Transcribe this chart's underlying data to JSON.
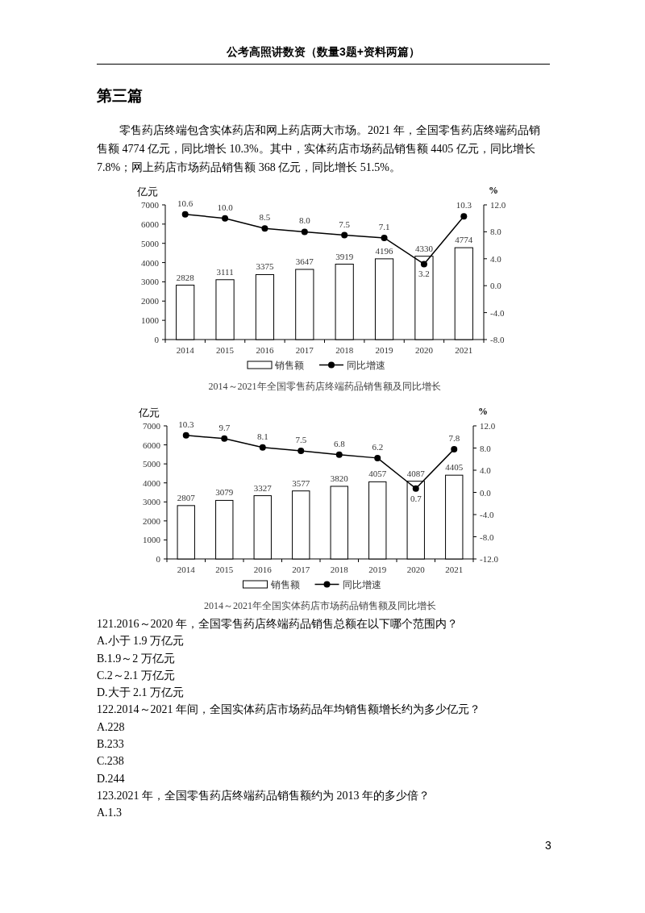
{
  "chart_data": [
    {
      "type": "bar",
      "title": "2014～2021年全国零售药店终端药品销售额及同比增长",
      "ylabel": "亿元",
      "y2label": "%",
      "annotations": [
        "公考高照讲数资（数量3题+资料两篇）",
        "第三篇",
        "零售药店终端包含实体药店和网上药店两大市场。2021 年，全国零售药店终端药品销售额 4774 亿元，同比增长 10.3%。其中，实体药店市场药品销售额 4405 亿元，同比增长 7.8%；网上药店市场药品销售额 368 亿元，同比增长 51.5%。"
      ],
      "categories": [
        "2014",
        "2015",
        "2016",
        "2017",
        "2018",
        "2019",
        "2020",
        "2021"
      ],
      "series": [
        {
          "name": "销售额",
          "color": "#ffffff",
          "values": [
            2828,
            3111,
            3375,
            3647,
            3919,
            4196,
            4330,
            4774
          ]
        },
        {
          "name": "同比增速",
          "type": "line",
          "axis": "y2",
          "color": "#000000",
          "marker": "circle",
          "values": [
            10.6,
            10.0,
            8.5,
            8.0,
            7.5,
            7.1,
            3.2,
            10.3
          ],
          "value_labels": [
            "10.6",
            "10.0",
            "8.5",
            "8.0",
            "7.5",
            "7.1",
            "3.2",
            "10.3"
          ]
        }
      ],
      "ylim": [
        0,
        7000
      ],
      "yticks": [
        0,
        1000,
        2000,
        3000,
        4000,
        5000,
        6000,
        7000
      ],
      "y2lim": [
        -8,
        12
      ],
      "y2ticks": [
        {
          "value": -8,
          "label": "-8.0"
        },
        {
          "value": -4,
          "label": "-4.0"
        },
        {
          "value": 0,
          "label": "0.0"
        },
        {
          "value": 4,
          "label": "4.0"
        },
        {
          "value": 8,
          "label": "8.0"
        },
        {
          "value": 12,
          "label": "12.0"
        }
      ],
      "data_labels": true,
      "legend": "bottom",
      "grid": false
    },
    {
      "type": "bar",
      "title": "2014～2021年全国实体药店市场药品销售额及同比增长",
      "ylabel": "亿元",
      "y2label": "%",
      "annotations": [
        "121.2016～2020 年，全国零售药店终端药品销售总额在以下哪个范围内？",
        "A.小于 1.9 万亿元",
        "B.1.9～2 万亿元",
        "C.2～2.1 万亿元",
        "D.大于 2.1 万亿元",
        "122.2014～2021 年间，全国实体药店市场药品年均销售额增长约为多少亿元？",
        "A.228",
        "B.233",
        "C.238",
        "D.244",
        "123.2021 年，全国零售药店终端药品销售额约为 2013 年的多少倍？",
        "A.1.3",
        "3"
      ],
      "categories": [
        "2014",
        "2015",
        "2016",
        "2017",
        "2018",
        "2019",
        "2020",
        "2021"
      ],
      "series": [
        {
          "name": "销售额",
          "color": "#ffffff",
          "values": [
            2807,
            3079,
            3327,
            3577,
            3820,
            4057,
            4087,
            4405
          ]
        },
        {
          "name": "同比增速",
          "type": "line",
          "axis": "y2",
          "color": "#000000",
          "marker": "circle",
          "values": [
            10.3,
            9.7,
            8.1,
            7.5,
            6.8,
            6.2,
            0.7,
            7.8
          ],
          "value_labels": [
            "10.3",
            "9.7",
            "8.1",
            "7.5",
            "6.8",
            "6.2",
            "0.7",
            "7.8"
          ]
        }
      ],
      "ylim": [
        0,
        7000
      ],
      "yticks": [
        0,
        1000,
        2000,
        3000,
        4000,
        5000,
        6000,
        7000
      ],
      "y2lim": [
        -12,
        12
      ],
      "y2ticks": [
        {
          "value": -12,
          "label": "-12.0"
        },
        {
          "value": -8,
          "label": "-8.0"
        },
        {
          "value": -4,
          "label": "-4.0"
        },
        {
          "value": 0,
          "label": "0.0"
        },
        {
          "value": 4,
          "label": "4.0"
        },
        {
          "value": 8,
          "label": "8.0"
        },
        {
          "value": 12,
          "label": "12.0"
        }
      ],
      "data_labels": true,
      "legend": "bottom",
      "grid": false
    }
  ]
}
